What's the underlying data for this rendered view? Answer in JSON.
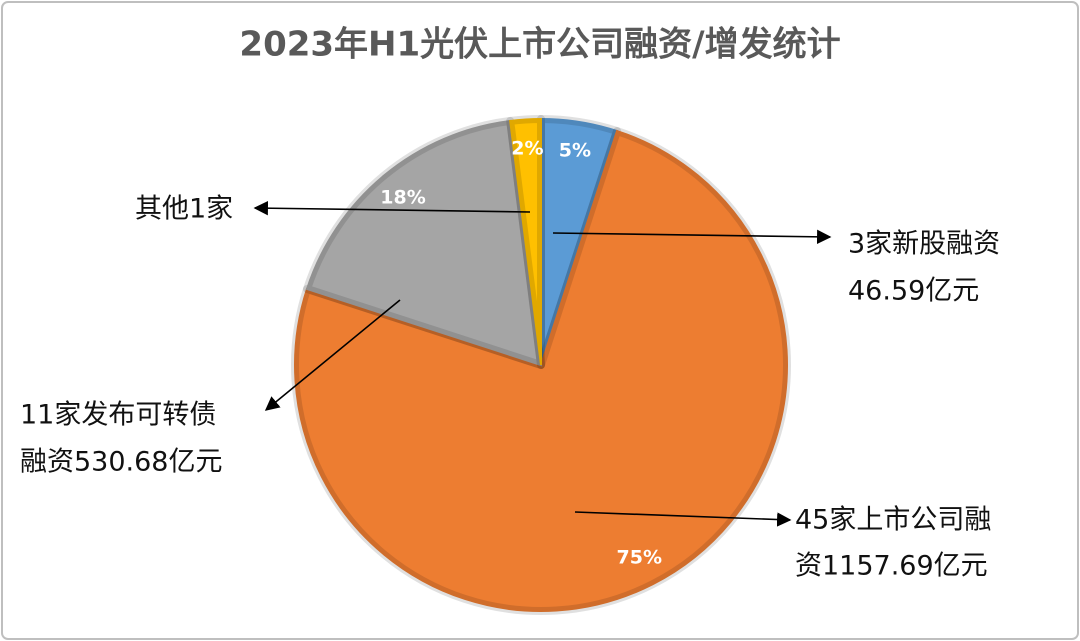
{
  "chart_data": {
    "type": "pie",
    "title": "2023年H1光伏上市公司融资/增发统计",
    "categories": [
      [
        "3家新股融资",
        "46.59亿元"
      ],
      [
        "45家上市公司融",
        "资1157.69亿元"
      ],
      [
        "11家发布可转债",
        "融资530.68亿元"
      ],
      [
        "其他1家"
      ]
    ],
    "values": [
      5,
      75,
      18,
      2
    ],
    "value_labels": [
      "5%",
      "75%",
      "18%",
      "2%"
    ],
    "colors": [
      "#5b9bd5",
      "#ed7d31",
      "#a5a5a5",
      "#ffc000"
    ]
  }
}
